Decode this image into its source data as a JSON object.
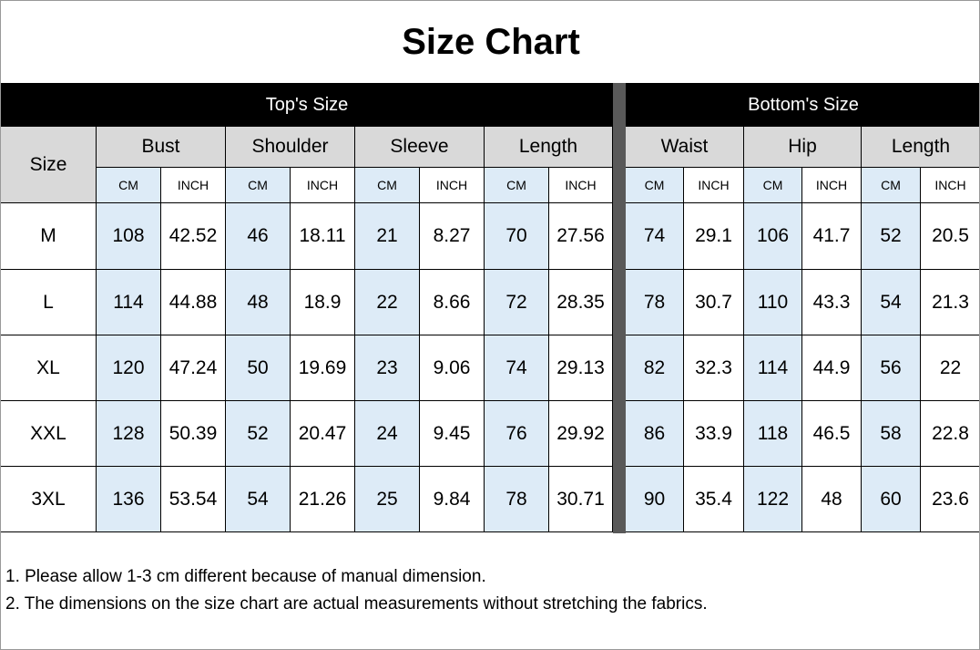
{
  "title": "Size Chart",
  "size_label": "Size",
  "groups": [
    {
      "title": "Top's Size",
      "columns": [
        {
          "name": "Bust",
          "units": [
            "CM",
            "INCH"
          ]
        },
        {
          "name": "Shoulder",
          "units": [
            "CM",
            "INCH"
          ]
        },
        {
          "name": "Sleeve",
          "units": [
            "CM",
            "INCH"
          ]
        },
        {
          "name": "Length",
          "units": [
            "CM",
            "INCH"
          ]
        }
      ]
    },
    {
      "title": "Bottom's Size",
      "columns": [
        {
          "name": "Waist",
          "units": [
            "CM",
            "INCH"
          ]
        },
        {
          "name": "Hip",
          "units": [
            "CM",
            "INCH"
          ]
        },
        {
          "name": "Length",
          "units": [
            "CM",
            "INCH"
          ]
        }
      ]
    }
  ],
  "rows": [
    {
      "size": "M",
      "values": [
        108,
        42.52,
        46,
        18.11,
        21,
        8.27,
        70,
        27.56,
        74,
        29.1,
        106,
        41.7,
        52,
        20.5
      ]
    },
    {
      "size": "L",
      "values": [
        114,
        44.88,
        48,
        18.9,
        22,
        8.66,
        72,
        28.35,
        78,
        30.7,
        110,
        43.3,
        54,
        21.3
      ]
    },
    {
      "size": "XL",
      "values": [
        120,
        47.24,
        50,
        19.69,
        23,
        9.06,
        74,
        29.13,
        82,
        32.3,
        114,
        44.9,
        56,
        22
      ]
    },
    {
      "size": "XXL",
      "values": [
        128,
        50.39,
        52,
        20.47,
        24,
        9.45,
        76,
        29.92,
        86,
        33.9,
        118,
        46.5,
        58,
        22.8
      ]
    },
    {
      "size": "3XL",
      "values": [
        136,
        53.54,
        54,
        21.26,
        25,
        9.84,
        78,
        30.71,
        90,
        35.4,
        122,
        48,
        60,
        23.6
      ]
    }
  ],
  "notes": [
    "1. Please allow 1-3 cm different because of manual dimension.",
    "2. The dimensions on the size chart are actual measurements without stretching the fabrics."
  ]
}
